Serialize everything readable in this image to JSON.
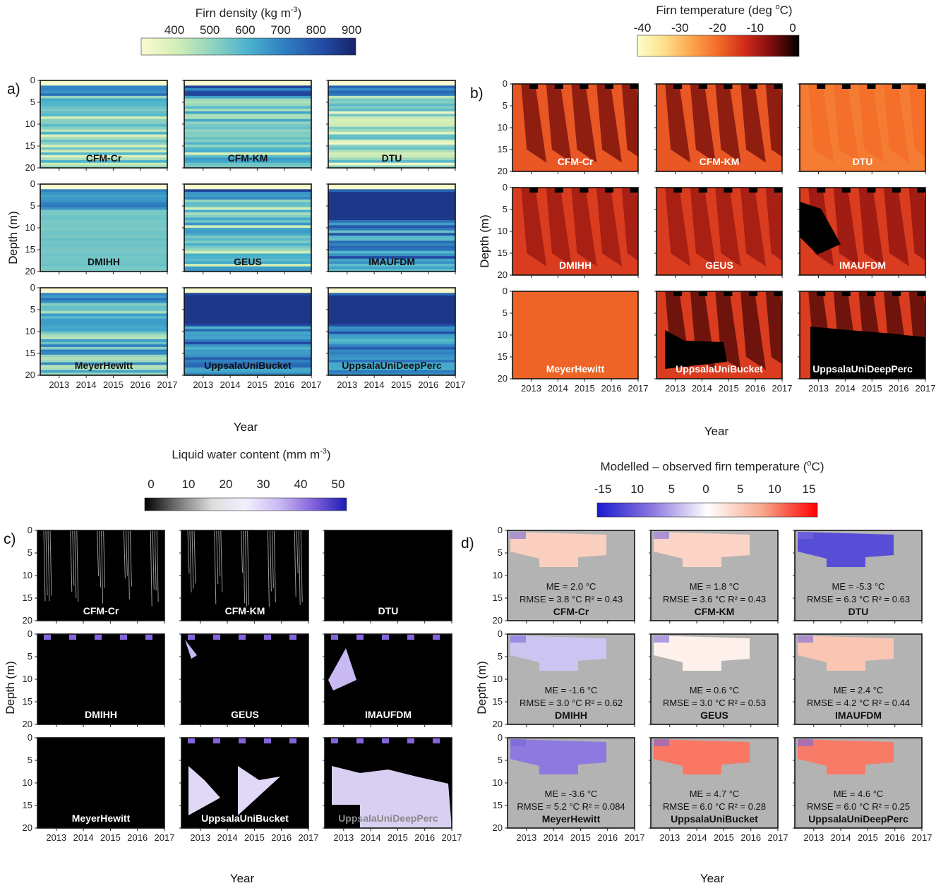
{
  "chart_data": [
    {
      "panel": "a)",
      "type": "heatmap",
      "colorbar": {
        "title": "Firn density (kg m",
        "title_sup": "-3",
        "title_end": ")",
        "ticks": [
          "400",
          "500",
          "600",
          "700",
          "800",
          "900"
        ],
        "range": [
          350,
          920
        ],
        "colors": [
          "#fbfbd0",
          "#d3eeb6",
          "#8fd3c0",
          "#4ab2cd",
          "#2f7fc0",
          "#244fa8",
          "#17236c"
        ]
      },
      "ylabel": "Depth (m)",
      "xlabel": "Year",
      "y_ticks": [
        "0",
        "5",
        "10",
        "15",
        "20"
      ],
      "ylim": [
        0,
        20
      ],
      "x_ticks": [
        "2013",
        "2014",
        "2015",
        "2016",
        "2017"
      ],
      "xlim": [
        2012.3,
        2017
      ],
      "models": [
        "CFM-Cr",
        "CFM-KM",
        "DTU",
        "DMIHH",
        "GEUS",
        "IMAUFDM",
        "MeyerHewitt",
        "UppsalaUniBucket",
        "UppsalaUniDeepPerc"
      ]
    },
    {
      "panel": "b)",
      "type": "heatmap",
      "colorbar": {
        "title": "Firn temperature (deg ",
        "title_sup": "o",
        "title_end": "C)",
        "ticks": [
          "-40",
          "-30",
          "-20",
          "-10",
          "0"
        ],
        "range": [
          -42,
          0
        ],
        "colors": [
          "#fdfdc8",
          "#fde08a",
          "#fca54c",
          "#f26b28",
          "#cf2a1a",
          "#7d0c0c",
          "#000000"
        ]
      },
      "ylabel": "Depth (m)",
      "xlabel": "Year",
      "y_ticks": [
        "0",
        "5",
        "10",
        "15",
        "20"
      ],
      "ylim": [
        0,
        20
      ],
      "x_ticks": [
        "2013",
        "2014",
        "2015",
        "2016",
        "2017"
      ],
      "xlim": [
        2012.3,
        2017
      ],
      "models": [
        "CFM-Cr",
        "CFM-KM",
        "DTU",
        "DMIHH",
        "GEUS",
        "IMAUFDM",
        "MeyerHewitt",
        "UppsalaUniBucket",
        "UppsalaUniDeepPerc"
      ]
    },
    {
      "panel": "c)",
      "type": "heatmap",
      "colorbar": {
        "title": "Liquid water content (mm m",
        "title_sup": "-3",
        "title_end": ")",
        "ticks": [
          "0",
          "10",
          "20",
          "30",
          "40",
          "50"
        ],
        "range": [
          0,
          52
        ],
        "colors": [
          "#000000",
          "#777777",
          "#dcdcdc",
          "#f3efff",
          "#c9b9f2",
          "#8364dc",
          "#1c1cb4"
        ]
      },
      "ylabel": "Depth (m)",
      "xlabel": "Year",
      "y_ticks": [
        "0",
        "5",
        "10",
        "15",
        "20"
      ],
      "ylim": [
        0,
        20
      ],
      "x_ticks": [
        "2013",
        "2014",
        "2015",
        "2016",
        "2017"
      ],
      "xlim": [
        2012.3,
        2017
      ],
      "models": [
        "CFM-Cr",
        "CFM-KM",
        "DTU",
        "DMIHH",
        "GEUS",
        "IMAUFDM",
        "MeyerHewitt",
        "UppsalaUniBucket",
        "UppsalaUniDeepPerc"
      ]
    },
    {
      "panel": "d)",
      "type": "heatmap",
      "colorbar": {
        "title": "Modelled – observed firn temperature (",
        "title_sup": "o",
        "title_end": "C)",
        "ticks": [
          "-15",
          "10",
          "5",
          "0",
          "5",
          "10",
          "15"
        ],
        "range": [
          -16,
          16
        ],
        "colors": [
          "#1a1acd",
          "#8c78e0",
          "#ffffff",
          "#f6a88c",
          "#ff0000"
        ]
      },
      "ylabel": "Depth (m)",
      "xlabel": "Year",
      "y_ticks": [
        "0",
        "5",
        "10",
        "15",
        "20"
      ],
      "ylim": [
        0,
        20
      ],
      "x_ticks": [
        "2013",
        "2014",
        "2015",
        "2016",
        "2017"
      ],
      "xlim": [
        2012.3,
        2017
      ],
      "models": [
        "CFM-Cr",
        "CFM-KM",
        "DTU",
        "DMIHH",
        "GEUS",
        "IMAUFDM",
        "MeyerHewitt",
        "UppsalaUniBucket",
        "UppsalaUniDeepPerc"
      ],
      "stats": [
        {
          "model": "CFM-Cr",
          "me": "ME = 2.0 °C",
          "rmse_r2": "RMSE = 3.8 °C  R² = 0.43",
          "me_value": 2.0,
          "rmse_value": 3.8,
          "r2_value": 0.43
        },
        {
          "model": "CFM-KM",
          "me": "ME = 1.8 °C",
          "rmse_r2": "RMSE = 3.6 °C  R² = 0.43",
          "me_value": 1.8,
          "rmse_value": 3.6,
          "r2_value": 0.43
        },
        {
          "model": "DTU",
          "me": "ME = -5.3 °C",
          "rmse_r2": "RMSE = 6.3 °C  R² = 0.63",
          "me_value": -5.3,
          "rmse_value": 6.3,
          "r2_value": 0.63
        },
        {
          "model": "DMIHH",
          "me": "ME = -1.6 °C",
          "rmse_r2": "RMSE = 3.0 °C  R² = 0.62",
          "me_value": -1.6,
          "rmse_value": 3.0,
          "r2_value": 0.62
        },
        {
          "model": "GEUS",
          "me": "ME = 0.6 °C",
          "rmse_r2": "RMSE = 3.0 °C  R² = 0.53",
          "me_value": 0.6,
          "rmse_value": 3.0,
          "r2_value": 0.53
        },
        {
          "model": "IMAUFDM",
          "me": "ME = 2.4 °C",
          "rmse_r2": "RMSE = 4.2 °C  R² = 0.44",
          "me_value": 2.4,
          "rmse_value": 4.2,
          "r2_value": 0.44
        },
        {
          "model": "MeyerHewitt",
          "me": "ME = -3.6 °C",
          "rmse_r2": "RMSE = 5.2 °C  R² = 0.084",
          "me_value": -3.6,
          "rmse_value": 5.2,
          "r2_value": 0.084
        },
        {
          "model": "UppsalaUniBucket",
          "me": "ME = 4.7 °C",
          "rmse_r2": "RMSE = 6.0 °C  R² = 0.28",
          "me_value": 4.7,
          "rmse_value": 6.0,
          "r2_value": 0.28
        },
        {
          "model": "UppsalaUniDeepPerc",
          "me": "ME = 4.6 °C",
          "rmse_r2": "RMSE = 6.0 °C  R² = 0.25",
          "me_value": 4.6,
          "rmse_value": 6.0,
          "r2_value": 0.25
        }
      ]
    }
  ]
}
